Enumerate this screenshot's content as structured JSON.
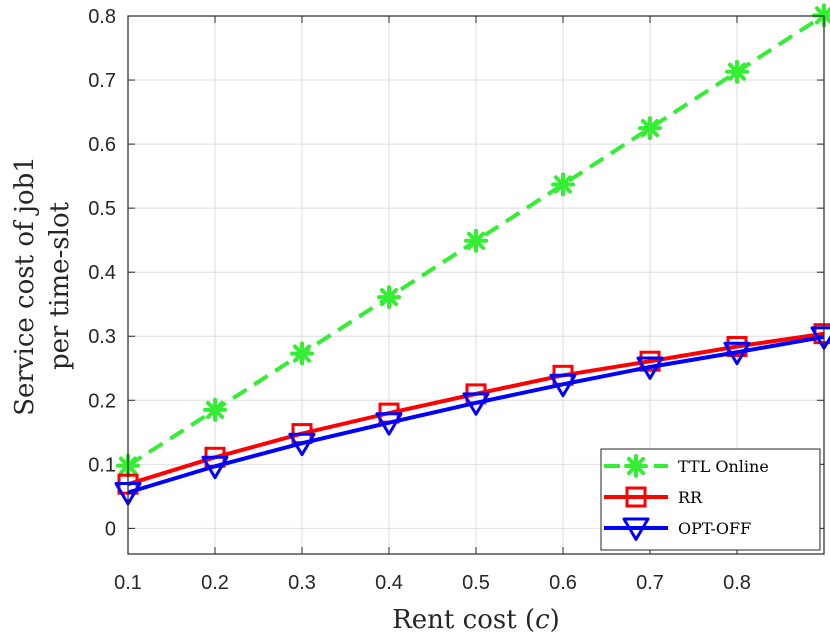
{
  "chart_data": {
    "type": "line",
    "title": "",
    "xlabel_main": "Rent cost (",
    "xlabel_var": "c",
    "xlabel_end": ")",
    "ylabel_lines": [
      "Service cost of job1",
      "per time-slot"
    ],
    "x": [
      0.1,
      0.2,
      0.3,
      0.4,
      0.5,
      0.6,
      0.7,
      0.8,
      0.9
    ],
    "xlim": [
      0.1,
      0.9
    ],
    "ylim": [
      -0.04,
      0.8
    ],
    "xticks": [
      "0.1",
      "0.2",
      "0.3",
      "0.4",
      "0.5",
      "0.6",
      "0.7",
      "0.8"
    ],
    "xtick_values": [
      0.1,
      0.2,
      0.3,
      0.4,
      0.5,
      0.6,
      0.7,
      0.8
    ],
    "yticks": [
      "0",
      "0.1",
      "0.2",
      "0.3",
      "0.4",
      "0.5",
      "0.6",
      "0.7",
      "0.8"
    ],
    "ytick_values": [
      0,
      0.1,
      0.2,
      0.3,
      0.4,
      0.5,
      0.6,
      0.7,
      0.8
    ],
    "grid": true,
    "legend_position": "bottom-right",
    "series": [
      {
        "name": "TTL Online",
        "color": "#33ee33",
        "marker": "asterisk",
        "dashed": true,
        "values": [
          0.098,
          0.185,
          0.273,
          0.361,
          0.449,
          0.537,
          0.625,
          0.713,
          0.801
        ]
      },
      {
        "name": "RR",
        "color": "#ff0000",
        "marker": "square",
        "dashed": false,
        "values": [
          0.069,
          0.111,
          0.148,
          0.18,
          0.21,
          0.239,
          0.261,
          0.284,
          0.304
        ]
      },
      {
        "name": "OPT-OFF",
        "color": "#0000ff",
        "marker": "triangle-down",
        "dashed": false,
        "values": [
          0.056,
          0.097,
          0.133,
          0.165,
          0.196,
          0.225,
          0.252,
          0.275,
          0.299
        ]
      }
    ]
  }
}
